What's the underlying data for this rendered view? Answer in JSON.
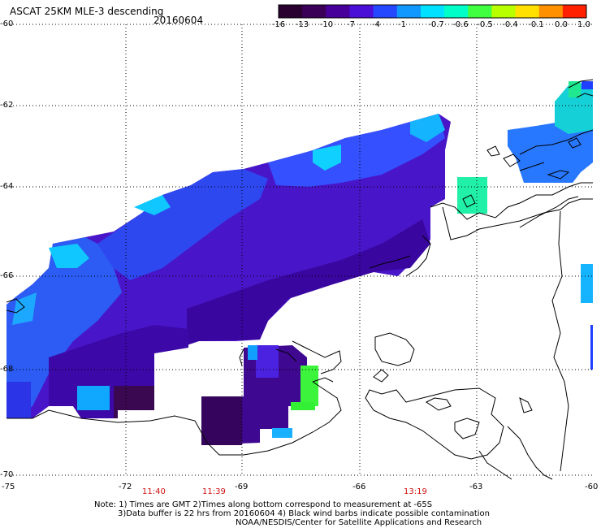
{
  "header": {
    "title": "ASCAT 25KM MLE-3 descending",
    "date": "20160604"
  },
  "colorbar": {
    "labels": [
      "-16",
      "-13",
      "-10",
      "-7",
      "-4",
      "-1",
      "-0.7",
      "-0.6",
      "-0.5",
      "-0.4",
      "-0.1",
      "0.0",
      "1.0"
    ],
    "colors": [
      "#2a0030",
      "#3a0058",
      "#48009a",
      "#4a10d8",
      "#2448ff",
      "#1098ff",
      "#00e0ff",
      "#00ffc8",
      "#40ff40",
      "#b8ff00",
      "#ffe000",
      "#ff9000",
      "#ff2000"
    ]
  },
  "axes": {
    "lat_labels": [
      "-60",
      "-62",
      "-64",
      "-66",
      "-68",
      "-70"
    ],
    "lon_labels": [
      "-75",
      "-72",
      "-69",
      "-66",
      "-63",
      "-60"
    ]
  },
  "times": [
    "11:40",
    "11:39",
    "13:19"
  ],
  "notes": {
    "line1": "Note: 1) Times are GMT 2)Times along bottom correspond to measurement at -65S",
    "line2": "3)Data buffer is 22 hrs from 20160604 4) Black wind barbs indicate possible contamination",
    "line3": "NOAA/NESDIS/Center for Satellite Applications and Research"
  }
}
